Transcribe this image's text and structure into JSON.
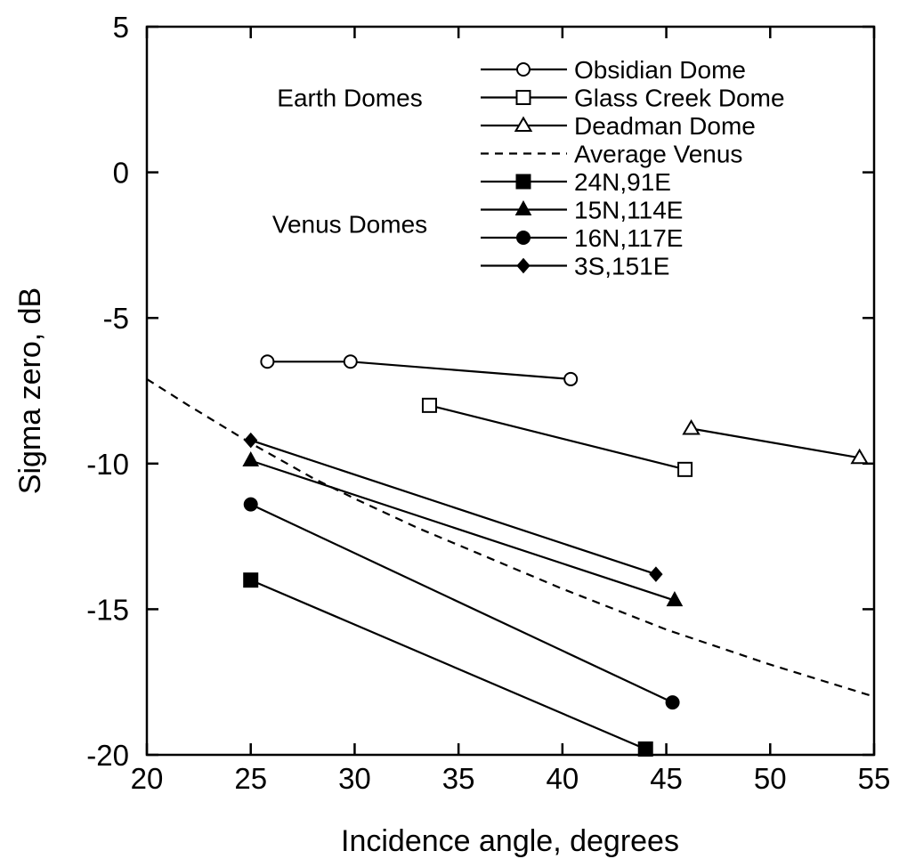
{
  "chart_data": {
    "type": "line",
    "xlabel": "Incidence angle, degrees",
    "ylabel": "Sigma zero, dB",
    "xlim": [
      20,
      55
    ],
    "ylim": [
      -20,
      5
    ],
    "xticks": [
      20,
      25,
      30,
      35,
      40,
      45,
      50,
      55
    ],
    "yticks": [
      5,
      0,
      -5,
      -10,
      -15,
      -20
    ],
    "grid": false,
    "legend_position": "top-right",
    "legend_groups": [
      {
        "label": "Earth Domes",
        "series": [
          "Obsidian Dome",
          "Glass Creek Dome",
          "Deadman Dome"
        ]
      },
      {
        "label": "Venus Domes",
        "series": [
          "24N,91E",
          "15N,114E",
          "16N,117E",
          "3S,151E"
        ]
      }
    ],
    "series": [
      {
        "name": "Obsidian Dome",
        "marker": "open-circle",
        "style": "solid",
        "points": [
          [
            25.8,
            -6.5
          ],
          [
            29.8,
            -6.5
          ],
          [
            40.4,
            -7.1
          ]
        ]
      },
      {
        "name": "Glass Creek Dome",
        "marker": "open-square",
        "style": "solid",
        "points": [
          [
            33.6,
            -8.0
          ],
          [
            45.9,
            -10.2
          ]
        ]
      },
      {
        "name": "Deadman Dome",
        "marker": "open-triangle",
        "style": "solid",
        "points": [
          [
            46.2,
            -8.8
          ],
          [
            54.3,
            -9.8
          ]
        ]
      },
      {
        "name": "Average Venus",
        "marker": "none",
        "style": "dashed",
        "points": [
          [
            20,
            -7.1
          ],
          [
            22,
            -8.0
          ],
          [
            25,
            -9.3
          ],
          [
            28,
            -10.5
          ],
          [
            30,
            -11.2
          ],
          [
            33,
            -12.2
          ],
          [
            36,
            -13.1
          ],
          [
            40,
            -14.3
          ],
          [
            45,
            -15.7
          ],
          [
            50,
            -16.9
          ],
          [
            55,
            -18.0
          ]
        ]
      },
      {
        "name": "24N,91E",
        "marker": "filled-square",
        "style": "solid",
        "points": [
          [
            25.0,
            -14.0
          ],
          [
            44.0,
            -19.8
          ]
        ]
      },
      {
        "name": "15N,114E",
        "marker": "filled-triangle",
        "style": "solid",
        "points": [
          [
            25.0,
            -9.9
          ],
          [
            45.4,
            -14.7
          ]
        ]
      },
      {
        "name": "16N,117E",
        "marker": "filled-circle",
        "style": "solid",
        "points": [
          [
            25.0,
            -11.4
          ],
          [
            45.3,
            -18.2
          ]
        ]
      },
      {
        "name": "3S,151E",
        "marker": "filled-diamond",
        "style": "solid",
        "points": [
          [
            25.0,
            -9.2
          ],
          [
            44.5,
            -13.8
          ]
        ]
      }
    ]
  }
}
